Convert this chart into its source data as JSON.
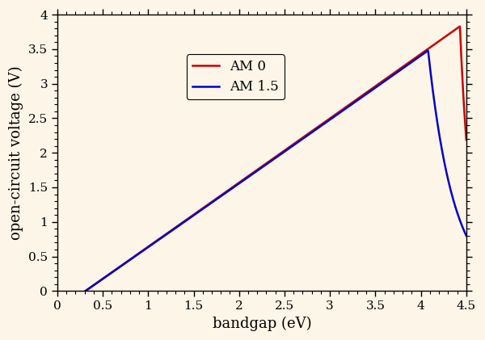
{
  "title": "",
  "xlabel": "bandgap (eV)",
  "ylabel": "open-circuit voltage (V)",
  "xlim": [
    0,
    4.5
  ],
  "ylim": [
    0,
    4
  ],
  "xticks": [
    0,
    0.5,
    1.0,
    1.5,
    2.0,
    2.5,
    3.0,
    3.5,
    4.0,
    4.5
  ],
  "yticks": [
    0,
    0.5,
    1.0,
    1.5,
    2.0,
    2.5,
    3.0,
    3.5,
    4.0
  ],
  "background_color": "#FDF5E8",
  "line_color_am15": "#0000CC",
  "line_color_am0": "#CC0000",
  "legend_labels": [
    "AM 1.5",
    "AM 0"
  ],
  "figwidth": 6.0,
  "figheight": 4.21,
  "dpi": 100
}
